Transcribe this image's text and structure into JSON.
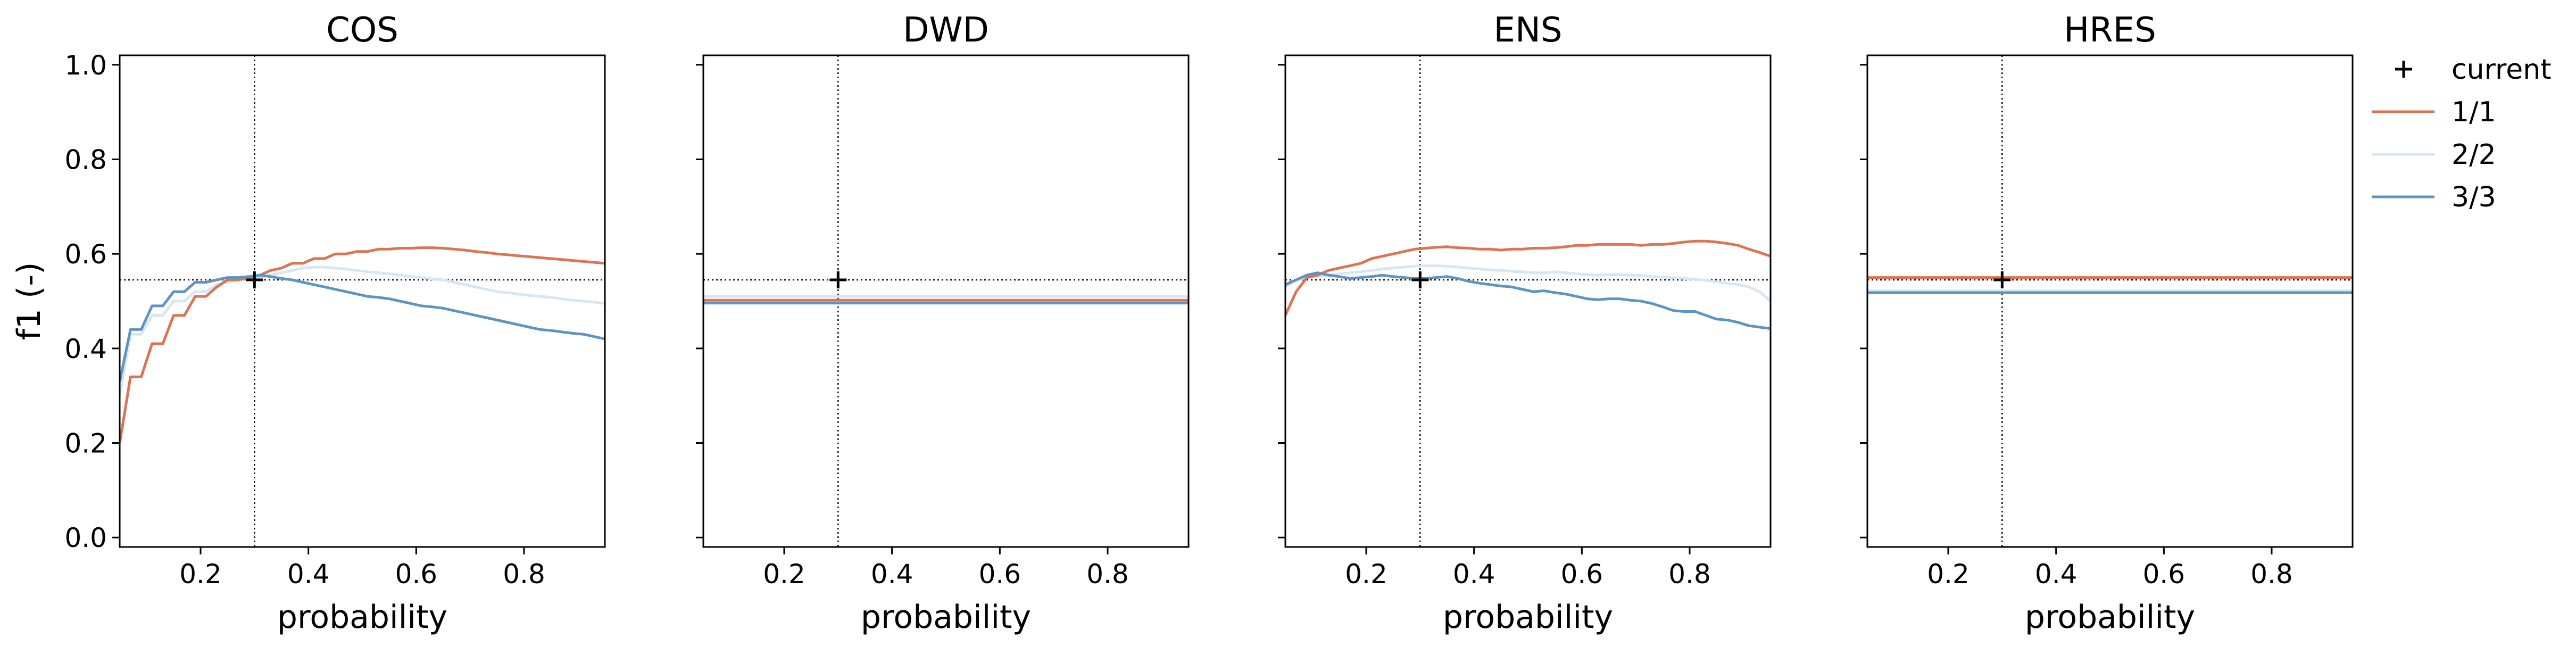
{
  "chart_data": [
    {
      "type": "line",
      "title": "COS",
      "xlabel": "probability",
      "ylabel": "f1 (-)",
      "xlim": [
        0.05,
        0.95
      ],
      "ylim": [
        -0.02,
        1.02
      ],
      "xticks": [
        "0.2",
        "0.4",
        "0.6",
        "0.8"
      ],
      "yticks": [
        "0.0",
        "0.2",
        "0.4",
        "0.6",
        "0.8",
        "1.0"
      ],
      "vline_x": 0.3,
      "hline_y": 0.545,
      "current": {
        "x": 0.3,
        "y": 0.545
      },
      "x": [
        0.05,
        0.07,
        0.09,
        0.11,
        0.13,
        0.15,
        0.17,
        0.19,
        0.21,
        0.23,
        0.25,
        0.27,
        0.29,
        0.31,
        0.33,
        0.35,
        0.37,
        0.39,
        0.41,
        0.43,
        0.45,
        0.47,
        0.49,
        0.51,
        0.53,
        0.55,
        0.57,
        0.59,
        0.61,
        0.63,
        0.65,
        0.67,
        0.69,
        0.71,
        0.73,
        0.75,
        0.77,
        0.79,
        0.81,
        0.83,
        0.85,
        0.87,
        0.89,
        0.91,
        0.93,
        0.95
      ],
      "series": [
        {
          "name": "1/1",
          "values": [
            0.2,
            0.34,
            0.34,
            0.41,
            0.41,
            0.47,
            0.47,
            0.51,
            0.51,
            0.53,
            0.545,
            0.545,
            0.55,
            0.555,
            0.565,
            0.57,
            0.58,
            0.58,
            0.59,
            0.59,
            0.6,
            0.6,
            0.605,
            0.605,
            0.61,
            0.61,
            0.612,
            0.612,
            0.613,
            0.613,
            0.612,
            0.61,
            0.608,
            0.605,
            0.603,
            0.6,
            0.598,
            0.596,
            0.594,
            0.592,
            0.59,
            0.588,
            0.586,
            0.584,
            0.582,
            0.58
          ]
        },
        {
          "name": "2/2",
          "values": [
            0.3,
            0.43,
            0.43,
            0.47,
            0.47,
            0.5,
            0.5,
            0.52,
            0.52,
            0.535,
            0.54,
            0.545,
            0.548,
            0.55,
            0.555,
            0.56,
            0.565,
            0.57,
            0.572,
            0.572,
            0.57,
            0.568,
            0.565,
            0.562,
            0.56,
            0.558,
            0.555,
            0.552,
            0.55,
            0.547,
            0.545,
            0.54,
            0.535,
            0.53,
            0.525,
            0.52,
            0.518,
            0.515,
            0.512,
            0.51,
            0.508,
            0.505,
            0.502,
            0.5,
            0.498,
            0.495
          ]
        },
        {
          "name": "3/3",
          "values": [
            0.33,
            0.44,
            0.44,
            0.49,
            0.49,
            0.52,
            0.52,
            0.54,
            0.54,
            0.545,
            0.55,
            0.55,
            0.552,
            0.555,
            0.552,
            0.548,
            0.545,
            0.54,
            0.535,
            0.53,
            0.525,
            0.52,
            0.515,
            0.51,
            0.508,
            0.505,
            0.5,
            0.495,
            0.49,
            0.488,
            0.485,
            0.48,
            0.475,
            0.47,
            0.465,
            0.46,
            0.455,
            0.45,
            0.445,
            0.44,
            0.438,
            0.435,
            0.432,
            0.43,
            0.425,
            0.42
          ]
        }
      ]
    },
    {
      "type": "line",
      "title": "DWD",
      "xlabel": "probability",
      "ylabel": "",
      "xlim": [
        0.05,
        0.95
      ],
      "ylim": [
        -0.02,
        1.02
      ],
      "xticks": [
        "0.2",
        "0.4",
        "0.6",
        "0.8"
      ],
      "yticks": [],
      "vline_x": 0.3,
      "hline_y": 0.545,
      "current": {
        "x": 0.3,
        "y": 0.545
      },
      "x": [
        0.05,
        0.95
      ],
      "series": [
        {
          "name": "1/1",
          "values": [
            0.502,
            0.502
          ]
        },
        {
          "name": "2/2",
          "values": [
            0.51,
            0.51
          ]
        },
        {
          "name": "3/3",
          "values": [
            0.496,
            0.496
          ]
        }
      ]
    },
    {
      "type": "line",
      "title": "ENS",
      "xlabel": "probability",
      "ylabel": "",
      "xlim": [
        0.05,
        0.95
      ],
      "ylim": [
        -0.02,
        1.02
      ],
      "xticks": [
        "0.2",
        "0.4",
        "0.6",
        "0.8"
      ],
      "yticks": [],
      "vline_x": 0.3,
      "hline_y": 0.545,
      "current": {
        "x": 0.3,
        "y": 0.545
      },
      "x": [
        0.05,
        0.07,
        0.09,
        0.11,
        0.13,
        0.15,
        0.17,
        0.19,
        0.21,
        0.23,
        0.25,
        0.27,
        0.29,
        0.31,
        0.33,
        0.35,
        0.37,
        0.39,
        0.41,
        0.43,
        0.45,
        0.47,
        0.49,
        0.51,
        0.53,
        0.55,
        0.57,
        0.59,
        0.61,
        0.63,
        0.65,
        0.67,
        0.69,
        0.71,
        0.73,
        0.75,
        0.77,
        0.79,
        0.81,
        0.83,
        0.85,
        0.87,
        0.89,
        0.91,
        0.93,
        0.95
      ],
      "series": [
        {
          "name": "1/1",
          "values": [
            0.47,
            0.52,
            0.55,
            0.555,
            0.565,
            0.57,
            0.575,
            0.58,
            0.59,
            0.595,
            0.6,
            0.605,
            0.61,
            0.612,
            0.614,
            0.615,
            0.613,
            0.612,
            0.61,
            0.61,
            0.608,
            0.61,
            0.61,
            0.612,
            0.612,
            0.613,
            0.615,
            0.618,
            0.618,
            0.62,
            0.62,
            0.62,
            0.62,
            0.618,
            0.62,
            0.62,
            0.622,
            0.625,
            0.627,
            0.627,
            0.625,
            0.622,
            0.618,
            0.61,
            0.603,
            0.595
          ]
        },
        {
          "name": "2/2",
          "values": [
            0.53,
            0.545,
            0.55,
            0.552,
            0.555,
            0.558,
            0.56,
            0.562,
            0.565,
            0.568,
            0.57,
            0.572,
            0.574,
            0.575,
            0.575,
            0.574,
            0.572,
            0.57,
            0.568,
            0.566,
            0.565,
            0.563,
            0.562,
            0.56,
            0.56,
            0.562,
            0.56,
            0.558,
            0.556,
            0.555,
            0.556,
            0.556,
            0.555,
            0.554,
            0.552,
            0.551,
            0.55,
            0.548,
            0.546,
            0.544,
            0.541,
            0.538,
            0.535,
            0.53,
            0.52,
            0.5
          ]
        },
        {
          "name": "3/3",
          "values": [
            0.535,
            0.545,
            0.555,
            0.56,
            0.555,
            0.552,
            0.548,
            0.55,
            0.552,
            0.555,
            0.552,
            0.55,
            0.548,
            0.548,
            0.55,
            0.552,
            0.548,
            0.542,
            0.538,
            0.535,
            0.532,
            0.53,
            0.525,
            0.52,
            0.522,
            0.518,
            0.515,
            0.51,
            0.505,
            0.503,
            0.505,
            0.505,
            0.502,
            0.5,
            0.495,
            0.488,
            0.48,
            0.478,
            0.478,
            0.47,
            0.462,
            0.46,
            0.455,
            0.448,
            0.445,
            0.442
          ]
        }
      ]
    },
    {
      "type": "line",
      "title": "HRES",
      "xlabel": "probability",
      "ylabel": "",
      "xlim": [
        0.05,
        0.95
      ],
      "ylim": [
        -0.02,
        1.02
      ],
      "xticks": [
        "0.2",
        "0.4",
        "0.6",
        "0.8"
      ],
      "yticks": [],
      "vline_x": 0.3,
      "hline_y": 0.545,
      "current": {
        "x": 0.3,
        "y": 0.545
      },
      "x": [
        0.05,
        0.95
      ],
      "series": [
        {
          "name": "1/1",
          "values": [
            0.55,
            0.55
          ]
        },
        {
          "name": "2/2",
          "values": [
            0.522,
            0.522
          ]
        },
        {
          "name": "3/3",
          "values": [
            0.518,
            0.518
          ]
        }
      ]
    }
  ],
  "legend": {
    "placement": "right",
    "entries": [
      {
        "label": "current",
        "marker": "plus",
        "color": "#000000"
      },
      {
        "label": "1/1",
        "color": "#dd7352"
      },
      {
        "label": "2/2",
        "color": "#d6e6f2"
      },
      {
        "label": "3/3",
        "color": "#5f93c0"
      }
    ]
  },
  "colors": {
    "s1": "#dd7352",
    "s2": "#d6e6f2",
    "s3": "#5f93c0"
  }
}
